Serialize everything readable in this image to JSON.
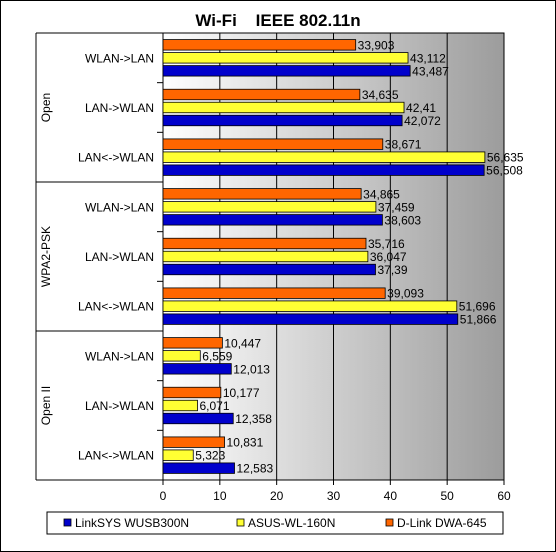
{
  "chart_data": {
    "type": "bar",
    "orientation": "horizontal",
    "title": "Wi-Fi    IEEE 802.11n",
    "xlim": [
      0,
      60
    ],
    "xticks": [
      0,
      10,
      20,
      30,
      40,
      50,
      60
    ],
    "grid": true,
    "legend_position": "bottom",
    "groups": [
      {
        "name": "Open",
        "categories": [
          {
            "label": "WLAN->LAN",
            "values": [
              33.903,
              43.112,
              43.487
            ],
            "labels": [
              "33,903",
              "43,112",
              "43,487"
            ]
          },
          {
            "label": "LAN->WLAN",
            "values": [
              34.635,
              42.41,
              42.072
            ],
            "labels": [
              "34,635",
              "42,41",
              "42,072"
            ]
          },
          {
            "label": "LAN<->WLAN",
            "values": [
              38.671,
              56.635,
              56.508
            ],
            "labels": [
              "38,671",
              "56,635",
              "56,508"
            ]
          }
        ]
      },
      {
        "name": "WPA2-PSK",
        "categories": [
          {
            "label": "WLAN->LAN",
            "values": [
              34.865,
              37.459,
              38.603
            ],
            "labels": [
              "34,865",
              "37,459",
              "38,603"
            ]
          },
          {
            "label": "LAN->WLAN",
            "values": [
              35.716,
              36.047,
              37.39
            ],
            "labels": [
              "35,716",
              "36,047",
              "37,39"
            ]
          },
          {
            "label": "LAN<->WLAN",
            "values": [
              39.093,
              51.696,
              51.866
            ],
            "labels": [
              "39,093",
              "51,696",
              "51,866"
            ]
          }
        ]
      },
      {
        "name": "Open II",
        "categories": [
          {
            "label": "WLAN->LAN",
            "values": [
              10.447,
              6.559,
              12.013
            ],
            "labels": [
              "10,447",
              "6,559",
              "12,013"
            ]
          },
          {
            "label": "LAN->WLAN",
            "values": [
              10.177,
              6.071,
              12.358
            ],
            "labels": [
              "10,177",
              "6,071",
              "12,358"
            ]
          },
          {
            "label": "LAN<->WLAN",
            "values": [
              10.831,
              5.323,
              12.583
            ],
            "labels": [
              "10,831",
              "5,323",
              "12,583"
            ]
          }
        ]
      }
    ],
    "bar_series_order": [
      "D-Link DWA-645",
      "ASUS-WL-160N",
      "LinkSYS WUSB300N"
    ],
    "legend": [
      {
        "name": "LinkSYS WUSB300N",
        "color": "#0000CC"
      },
      {
        "name": "ASUS-WL-160N",
        "color": "#FFFF33"
      },
      {
        "name": "D-Link DWA-645",
        "color": "#FF6600"
      }
    ]
  }
}
